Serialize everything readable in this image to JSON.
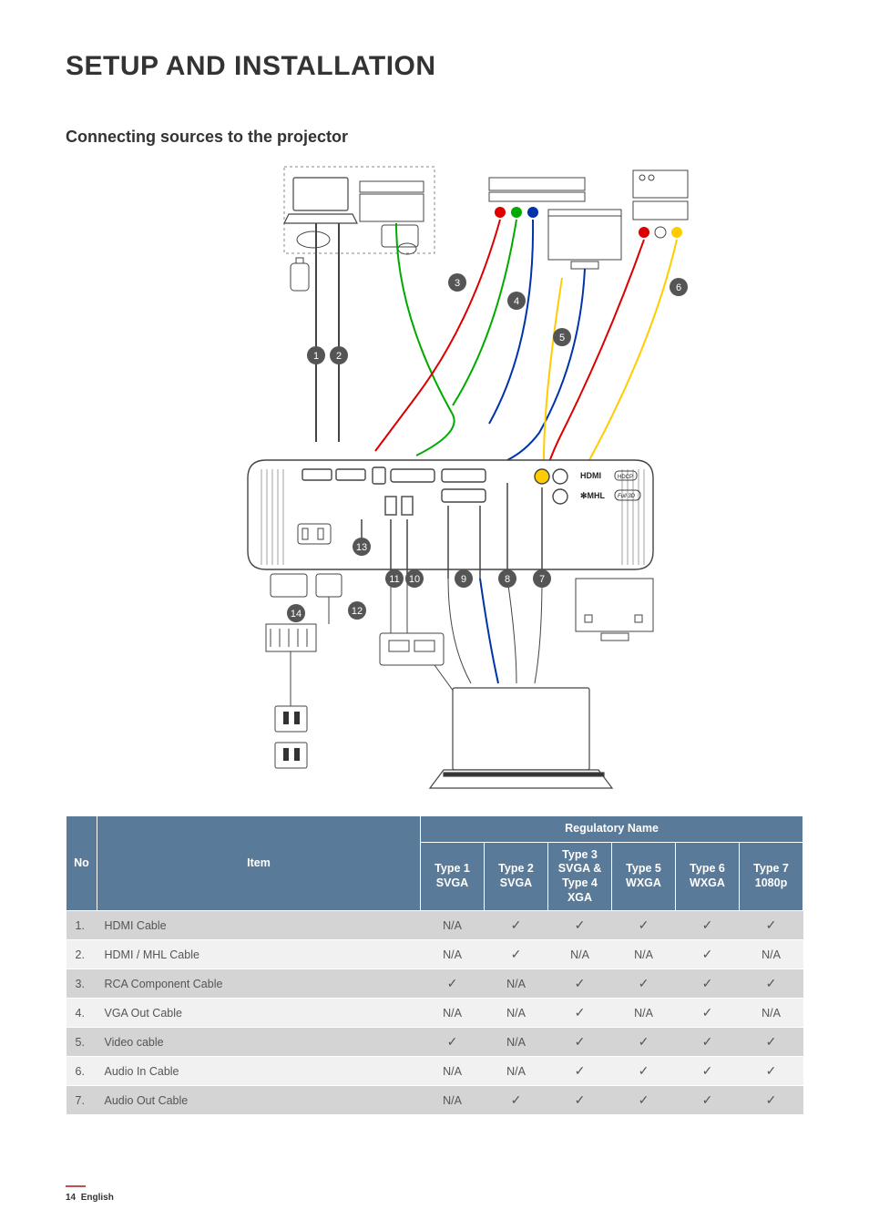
{
  "page": {
    "title": "SETUP AND INSTALLATION",
    "subtitle": "Connecting sources to the projector",
    "footer_page": "14",
    "footer_lang": "English"
  },
  "colors": {
    "header_bg": "#5a7a99",
    "header_text": "#ffffff",
    "row_odd": "#d4d4d4",
    "row_even": "#f1f1f1",
    "accent_red": "#c0504d",
    "text": "#333333",
    "muted": "#555555"
  },
  "diagram": {
    "callouts": [
      "1",
      "2",
      "3",
      "4",
      "5",
      "6",
      "7",
      "8",
      "9",
      "10",
      "11",
      "12",
      "13",
      "14"
    ],
    "labels": {
      "hdmi": "HDMI",
      "mhl": "MHL",
      "full3d": "Full 3D",
      "hdcp": "HDCP"
    }
  },
  "table": {
    "header_group": "Regulatory Name",
    "columns": {
      "no": "No",
      "item": "Item",
      "t1": "Type 1 SVGA",
      "t2": "Type 2 SVGA",
      "t3": "Type 3 SVGA & Type 4 XGA",
      "t5": "Type 5 WXGA",
      "t6": "Type 6 WXGA",
      "t7": "Type 7 1080p"
    },
    "rows": [
      {
        "no": "1.",
        "item": "HDMI Cable",
        "t1": "N/A",
        "t2": "✓",
        "t3": "✓",
        "t5": "✓",
        "t6": "✓",
        "t7": "✓"
      },
      {
        "no": "2.",
        "item": "HDMI / MHL Cable",
        "t1": "N/A",
        "t2": "✓",
        "t3": "N/A",
        "t5": "N/A",
        "t6": "✓",
        "t7": "N/A"
      },
      {
        "no": "3.",
        "item": "RCA Component Cable",
        "t1": "✓",
        "t2": "N/A",
        "t3": "✓",
        "t5": "✓",
        "t6": "✓",
        "t7": "✓"
      },
      {
        "no": "4.",
        "item": "VGA Out Cable",
        "t1": "N/A",
        "t2": "N/A",
        "t3": "✓",
        "t5": "N/A",
        "t6": "✓",
        "t7": "N/A"
      },
      {
        "no": "5.",
        "item": "Video cable",
        "t1": "✓",
        "t2": "N/A",
        "t3": "✓",
        "t5": "✓",
        "t6": "✓",
        "t7": "✓"
      },
      {
        "no": "6.",
        "item": "Audio In Cable",
        "t1": "N/A",
        "t2": "N/A",
        "t3": "✓",
        "t5": "✓",
        "t6": "✓",
        "t7": "✓"
      },
      {
        "no": "7.",
        "item": "Audio Out Cable",
        "t1": "N/A",
        "t2": "✓",
        "t3": "✓",
        "t5": "✓",
        "t6": "✓",
        "t7": "✓"
      }
    ]
  }
}
